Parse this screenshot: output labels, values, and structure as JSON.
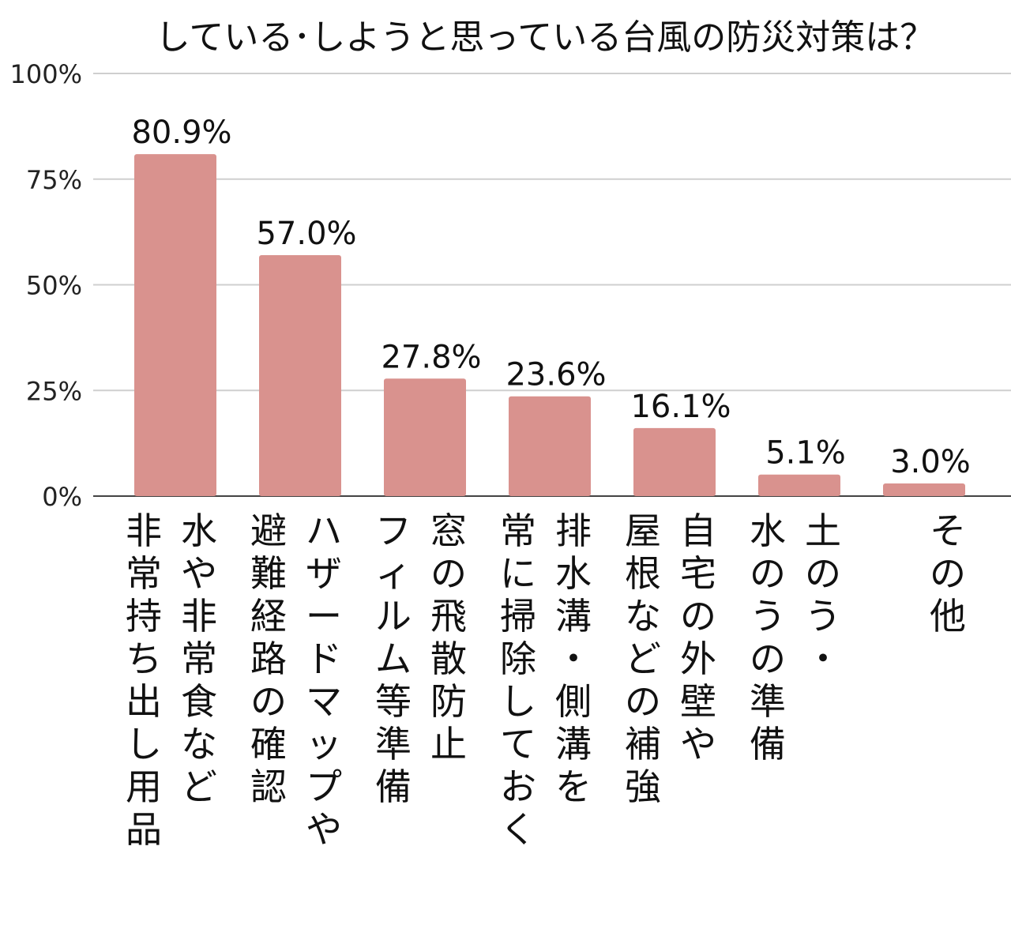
{
  "chart_data": {
    "type": "bar",
    "title": "している･しようと思っている台風の防災対策は？",
    "xlabel": "",
    "ylabel": "",
    "ylim": [
      0,
      100
    ],
    "yticks": [
      {
        "value": 0,
        "label": "0%"
      },
      {
        "value": 25,
        "label": "25%"
      },
      {
        "value": 50,
        "label": "50%"
      },
      {
        "value": 75,
        "label": "75%"
      },
      {
        "value": 100,
        "label": "100%"
      }
    ],
    "grid": true,
    "bar_color": "#d9928e",
    "categories": [
      {
        "name": "水や非常食など非常持ち出し用品",
        "lines": [
          "水や非常食など",
          "非常持ち出し用品"
        ]
      },
      {
        "name": "ハザードマップや避難経路の確認",
        "lines": [
          "ハザードマップや",
          "避難経路の確認"
        ]
      },
      {
        "name": "窓の飛散防止フィルム等準備",
        "lines": [
          "窓の飛散防止",
          "フィルム等準備"
        ]
      },
      {
        "name": "排水溝・側溝を常に掃除しておく",
        "lines": [
          "排水溝・側溝を",
          "常に掃除しておく"
        ]
      },
      {
        "name": "自宅の外壁や屋根などの補強",
        "lines": [
          "自宅の外壁や",
          "屋根などの補強"
        ]
      },
      {
        "name": "土のう・水のうの準備",
        "lines": [
          "土のう・",
          "水のうの準備"
        ]
      },
      {
        "name": "その他",
        "lines": [
          "その他"
        ]
      }
    ],
    "values": [
      80.9,
      57.0,
      27.8,
      23.6,
      16.1,
      5.1,
      3.0
    ],
    "value_labels": [
      "80.9%",
      "57.0%",
      "27.8%",
      "23.6%",
      "16.1%",
      "5.1%",
      "3.0%"
    ]
  }
}
